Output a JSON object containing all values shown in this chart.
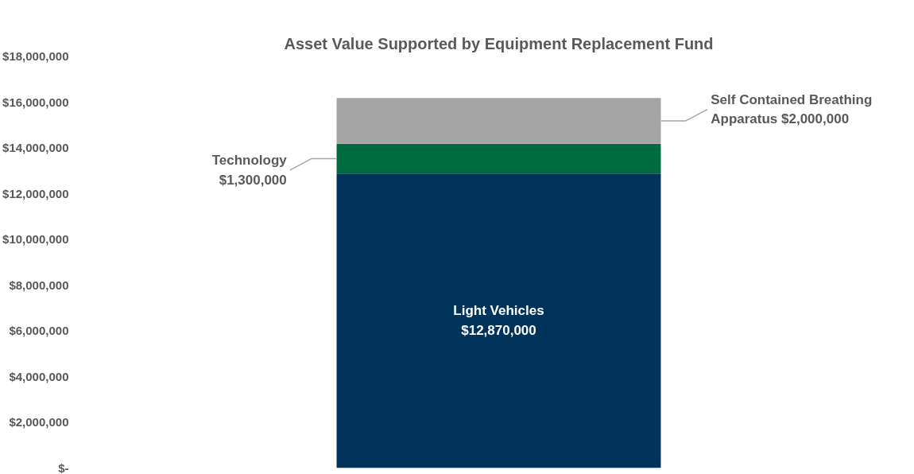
{
  "chart_data": {
    "type": "bar",
    "title": "Asset Value Supported by Equipment Replacement Fund",
    "stacked": true,
    "categories": [
      null
    ],
    "series": [
      {
        "name": "Light Vehicles",
        "color": "#00335a",
        "values": [
          12870000
        ],
        "value_labels": [
          "$12,870,000"
        ]
      },
      {
        "name": "Technology",
        "color": "#006b3f",
        "values": [
          1300000
        ],
        "value_labels": [
          "$1,300,000"
        ]
      },
      {
        "name": "Self Contained Breathing Apparatus",
        "color": "#a5a5a5",
        "values": [
          2000000
        ],
        "value_labels": [
          "$2,000,000"
        ]
      }
    ],
    "ylim": [
      0,
      18000000
    ],
    "yticks": [
      {
        "value": 0,
        "label": "$-"
      },
      {
        "value": 2000000,
        "label": "$2,000,000"
      },
      {
        "value": 4000000,
        "label": "$4,000,000"
      },
      {
        "value": 6000000,
        "label": "$6,000,000"
      },
      {
        "value": 8000000,
        "label": "$8,000,000"
      },
      {
        "value": 10000000,
        "label": "$10,000,000"
      },
      {
        "value": 12000000,
        "label": "$12,000,000"
      },
      {
        "value": 14000000,
        "label": "$14,000,000"
      },
      {
        "value": 16000000,
        "label": "$16,000,000"
      },
      {
        "value": 18000000,
        "label": "$18,000,000"
      }
    ],
    "grid": false
  }
}
